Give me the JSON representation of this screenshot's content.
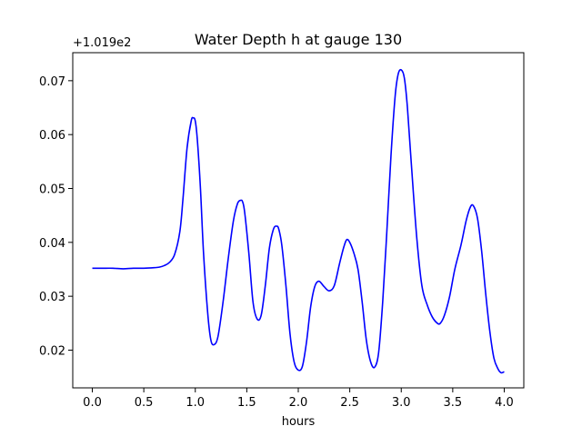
{
  "chart_data": {
    "type": "line",
    "title": "Water Depth h at gauge 130",
    "xlabel": "hours",
    "ylabel": "",
    "offset_text": "+1.019e2",
    "xlim": [
      -0.19,
      4.19
    ],
    "ylim": [
      0.013,
      0.0752
    ],
    "xticks": [
      0.0,
      0.5,
      1.0,
      1.5,
      2.0,
      2.5,
      3.0,
      3.5,
      4.0
    ],
    "xtick_labels": [
      "0.0",
      "0.5",
      "1.0",
      "1.5",
      "2.0",
      "2.5",
      "3.0",
      "3.5",
      "4.0"
    ],
    "yticks": [
      0.02,
      0.03,
      0.04,
      0.05,
      0.06,
      0.07
    ],
    "ytick_labels": [
      "0.02",
      "0.03",
      "0.04",
      "0.05",
      "0.06",
      "0.07"
    ],
    "grid": false,
    "line_color": "#0000ff",
    "series": [
      {
        "x": [
          0.0,
          0.1,
          0.2,
          0.3,
          0.4,
          0.5,
          0.6,
          0.65,
          0.7,
          0.75,
          0.8,
          0.85,
          0.88,
          0.92,
          0.96,
          0.98,
          1.0,
          1.02,
          1.05,
          1.08,
          1.12,
          1.15,
          1.18,
          1.22,
          1.27,
          1.32,
          1.37,
          1.41,
          1.44,
          1.46,
          1.48,
          1.52,
          1.56,
          1.6,
          1.64,
          1.68,
          1.72,
          1.76,
          1.79,
          1.81,
          1.84,
          1.88,
          1.92,
          1.96,
          2.0,
          2.04,
          2.08,
          2.12,
          2.16,
          2.2,
          2.25,
          2.3,
          2.35,
          2.4,
          2.44,
          2.47,
          2.5,
          2.54,
          2.58,
          2.62,
          2.66,
          2.7,
          2.74,
          2.78,
          2.82,
          2.86,
          2.9,
          2.94,
          2.97,
          3.0,
          3.03,
          3.06,
          3.1,
          3.15,
          3.2,
          3.25,
          3.3,
          3.35,
          3.38,
          3.42,
          3.47,
          3.52,
          3.58,
          3.63,
          3.67,
          3.7,
          3.74,
          3.78,
          3.82,
          3.86,
          3.9,
          3.94,
          3.97,
          4.0
        ],
        "values": [
          0.0352,
          0.0352,
          0.0352,
          0.0351,
          0.0352,
          0.0352,
          0.0353,
          0.0354,
          0.0357,
          0.0363,
          0.0378,
          0.042,
          0.048,
          0.0575,
          0.0625,
          0.0631,
          0.0625,
          0.059,
          0.05,
          0.038,
          0.027,
          0.022,
          0.021,
          0.0225,
          0.029,
          0.037,
          0.044,
          0.0472,
          0.0478,
          0.0475,
          0.0455,
          0.038,
          0.029,
          0.0258,
          0.0265,
          0.032,
          0.039,
          0.0425,
          0.043,
          0.0425,
          0.0395,
          0.032,
          0.023,
          0.0178,
          0.0163,
          0.017,
          0.0215,
          0.028,
          0.0318,
          0.0328,
          0.0318,
          0.031,
          0.032,
          0.036,
          0.039,
          0.0405,
          0.04,
          0.038,
          0.035,
          0.029,
          0.022,
          0.018,
          0.0168,
          0.0195,
          0.029,
          0.042,
          0.056,
          0.067,
          0.0712,
          0.072,
          0.0705,
          0.065,
          0.054,
          0.041,
          0.032,
          0.0285,
          0.0262,
          0.025,
          0.025,
          0.0265,
          0.03,
          0.035,
          0.0395,
          0.044,
          0.0465,
          0.0468,
          0.0445,
          0.0385,
          0.0305,
          0.0235,
          0.0185,
          0.0165,
          0.0158,
          0.016
        ]
      }
    ]
  }
}
